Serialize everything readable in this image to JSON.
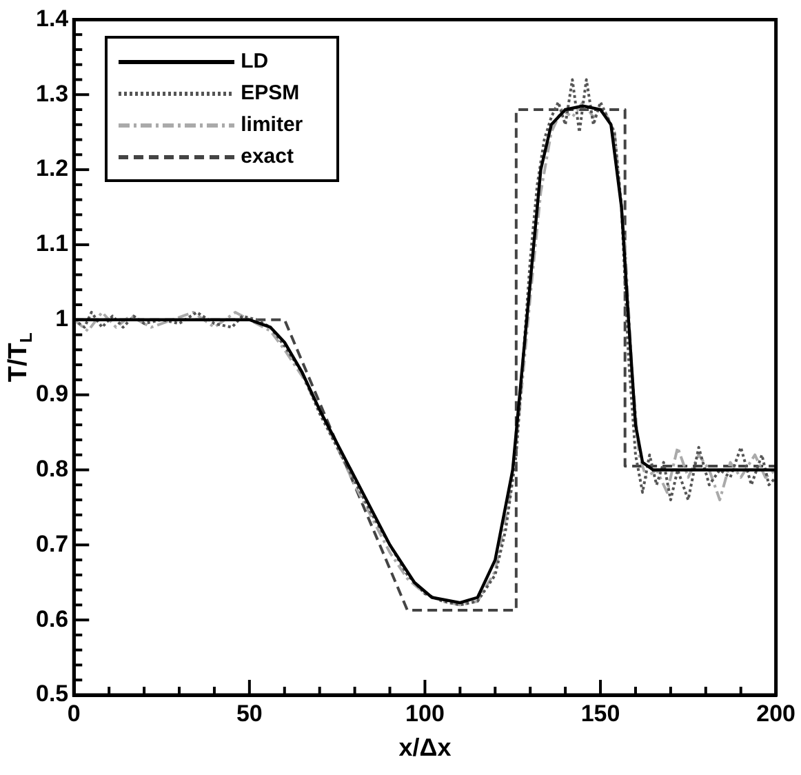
{
  "chart_data": {
    "type": "line",
    "xlabel": "x/Δx",
    "ylabel": "T/T$_{L}$",
    "xlim": [
      0,
      200
    ],
    "ylim": [
      0.5,
      1.4
    ],
    "xticks": [
      0,
      {
        "value": 10,
        "label": null
      },
      {
        "value": 20,
        "label": null
      },
      {
        "value": 30,
        "label": null
      },
      {
        "value": 40,
        "label": null
      },
      50,
      {
        "value": 60,
        "label": null
      },
      {
        "value": 70,
        "label": null
      },
      {
        "value": 80,
        "label": null
      },
      {
        "value": 90,
        "label": null
      },
      100,
      {
        "value": 110,
        "label": null
      },
      {
        "value": 120,
        "label": null
      },
      {
        "value": 130,
        "label": null
      },
      {
        "value": 140,
        "label": null
      },
      150,
      {
        "value": 160,
        "label": null
      },
      {
        "value": 170,
        "label": null
      },
      {
        "value": 180,
        "label": null
      },
      {
        "value": 190,
        "label": null
      },
      200
    ],
    "yticks": [
      0.5,
      {
        "value": 0.52,
        "label": null
      },
      {
        "value": 0.54,
        "label": null
      },
      {
        "value": 0.56,
        "label": null
      },
      {
        "value": 0.58,
        "label": null
      },
      0.6,
      {
        "value": 0.62,
        "label": null
      },
      {
        "value": 0.64,
        "label": null
      },
      {
        "value": 0.66,
        "label": null
      },
      {
        "value": 0.68,
        "label": null
      },
      0.7,
      {
        "value": 0.72,
        "label": null
      },
      {
        "value": 0.74,
        "label": null
      },
      {
        "value": 0.76,
        "label": null
      },
      {
        "value": 0.78,
        "label": null
      },
      0.8,
      {
        "value": 0.82,
        "label": null
      },
      {
        "value": 0.84,
        "label": null
      },
      {
        "value": 0.86,
        "label": null
      },
      {
        "value": 0.88,
        "label": null
      },
      0.9,
      {
        "value": 0.92,
        "label": null
      },
      {
        "value": 0.94,
        "label": null
      },
      {
        "value": 0.96,
        "label": null
      },
      {
        "value": 0.98,
        "label": null
      },
      1,
      {
        "value": 1.02,
        "label": null
      },
      {
        "value": 1.04,
        "label": null
      },
      {
        "value": 1.06,
        "label": null
      },
      {
        "value": 1.08,
        "label": null
      },
      1.1,
      {
        "value": 1.12,
        "label": null
      },
      {
        "value": 1.14,
        "label": null
      },
      {
        "value": 1.16,
        "label": null
      },
      {
        "value": 1.18,
        "label": null
      },
      1.2,
      {
        "value": 1.22,
        "label": null
      },
      {
        "value": 1.24,
        "label": null
      },
      {
        "value": 1.26,
        "label": null
      },
      {
        "value": 1.28,
        "label": null
      },
      1.3,
      {
        "value": 1.32,
        "label": null
      },
      {
        "value": 1.34,
        "label": null
      },
      {
        "value": 1.36,
        "label": null
      },
      {
        "value": 1.38,
        "label": null
      },
      1.4
    ],
    "grid": false,
    "legend": "top left",
    "marker": "none",
    "series": [
      {
        "name": "LD",
        "color": "#000000",
        "line_style": "solid",
        "x": [
          0,
          50,
          56,
          60,
          65,
          70,
          80,
          90,
          97,
          102,
          110,
          115,
          120,
          125,
          130,
          133,
          136,
          140,
          145,
          150,
          153,
          156,
          158,
          160,
          162,
          165,
          200
        ],
        "values": [
          1,
          1,
          0.99,
          0.97,
          0.93,
          0.88,
          0.79,
          0.7,
          0.65,
          0.63,
          0.623,
          0.63,
          0.68,
          0.8,
          1.05,
          1.2,
          1.26,
          1.28,
          1.285,
          1.28,
          1.26,
          1.15,
          1.0,
          0.86,
          0.81,
          0.8,
          0.8
        ]
      },
      {
        "name": "EPSM",
        "color": "#555555",
        "line_style": "dotted",
        "x": [
          0,
          3,
          5,
          8,
          11,
          14,
          17,
          20,
          25,
          30,
          35,
          40,
          45,
          48,
          52,
          56,
          60,
          65,
          70,
          75,
          80,
          85,
          90,
          95,
          100,
          105,
          110,
          115,
          120,
          123,
          126,
          128,
          130,
          132,
          134,
          136,
          138,
          140,
          142,
          144,
          146,
          148,
          150,
          152,
          154,
          156,
          158,
          160,
          162,
          164,
          166,
          168,
          170,
          172,
          175,
          178,
          181,
          184,
          187,
          190,
          193,
          196,
          198,
          200
        ],
        "values": [
          1.0,
          0.99,
          1.01,
          0.99,
          1.005,
          0.99,
          1.005,
          0.995,
          1.0,
          0.995,
          1.01,
          0.995,
          0.99,
          1.005,
          1.0,
          0.99,
          0.965,
          0.93,
          0.875,
          0.83,
          0.785,
          0.74,
          0.7,
          0.66,
          0.635,
          0.625,
          0.62,
          0.625,
          0.66,
          0.72,
          0.82,
          0.95,
          1.08,
          1.18,
          1.24,
          1.27,
          1.29,
          1.26,
          1.32,
          1.25,
          1.32,
          1.26,
          1.29,
          1.27,
          1.25,
          1.15,
          0.95,
          0.82,
          0.77,
          0.82,
          0.78,
          0.81,
          0.76,
          0.8,
          0.76,
          0.83,
          0.78,
          0.8,
          0.79,
          0.83,
          0.78,
          0.82,
          0.78,
          0.79
        ]
      },
      {
        "name": "limiter",
        "color": "#aaaaaa",
        "line_style": "dashdot",
        "x": [
          0,
          4,
          8,
          12,
          16,
          22,
          28,
          34,
          40,
          46,
          52,
          56,
          60,
          65,
          70,
          75,
          80,
          85,
          90,
          95,
          100,
          105,
          110,
          115,
          120,
          124,
          127,
          130,
          133,
          136,
          139,
          142,
          145,
          148,
          151,
          154,
          157,
          159,
          161,
          163,
          166,
          169,
          172,
          175,
          178,
          181,
          184,
          187,
          190,
          194,
          197,
          200
        ],
        "values": [
          1.0,
          0.985,
          1.01,
          0.99,
          1.005,
          0.99,
          1.0,
          1.01,
          0.99,
          1.01,
          0.995,
          0.985,
          0.96,
          0.925,
          0.88,
          0.83,
          0.78,
          0.735,
          0.69,
          0.655,
          0.635,
          0.625,
          0.62,
          0.625,
          0.665,
          0.76,
          0.88,
          1.03,
          1.17,
          1.25,
          1.28,
          1.27,
          1.29,
          1.27,
          1.28,
          1.25,
          1.1,
          0.93,
          0.82,
          0.79,
          0.8,
          0.77,
          0.83,
          0.79,
          0.82,
          0.8,
          0.76,
          0.81,
          0.79,
          0.82,
          0.79,
          0.8
        ]
      },
      {
        "name": "exact",
        "color": "#444444",
        "line_style": "dashed",
        "x": [
          0,
          60,
          95,
          126,
          126,
          157,
          157,
          200
        ],
        "values": [
          1,
          1,
          0.613,
          0.613,
          1.28,
          1.28,
          0.805,
          0.805
        ]
      }
    ]
  }
}
